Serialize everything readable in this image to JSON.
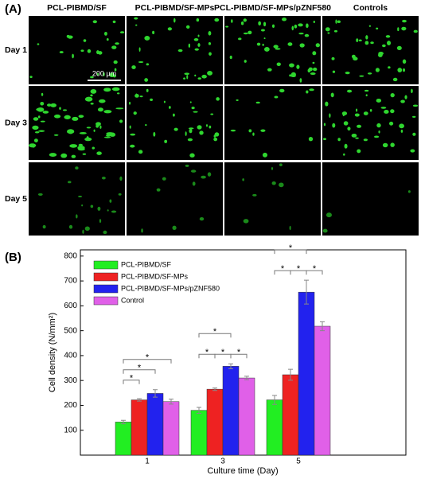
{
  "panel_a": {
    "label": "(A)",
    "columns": [
      "PCL-PIBMD/SF",
      "PCL-PIBMD/SF-MPs",
      "PCL-PIBMD/SF-MPs/pZNF580",
      "Controls"
    ],
    "rows": [
      "Day 1",
      "Day 3",
      "Day 5"
    ],
    "scale_bar": "200 μm"
  },
  "chart_data": {
    "type": "bar",
    "panel_label": "(B)",
    "x_label": "Culture time (Day)",
    "y_label": "Cell density (N/mm²)",
    "categories": [
      "1",
      "3",
      "5"
    ],
    "series": [
      {
        "name": "PCL-PIBMD/SF",
        "color": "#22ee22",
        "values": [
          133,
          180,
          222
        ],
        "errors": [
          7,
          12,
          18
        ]
      },
      {
        "name": "PCL-PIBMD/SF-MPs",
        "color": "#ee2222",
        "values": [
          222,
          265,
          323
        ],
        "errors": [
          5,
          5,
          22
        ]
      },
      {
        "name": "PCL-PIBMD/SF-MPs/pZNF580",
        "color": "#2222ee",
        "values": [
          248,
          357,
          655
        ],
        "errors": [
          15,
          10,
          48
        ]
      },
      {
        "name": "Control",
        "color": "#e060e8",
        "values": [
          215,
          310,
          518
        ],
        "errors": [
          10,
          7,
          18
        ]
      }
    ],
    "ylim": [
      0,
      825
    ],
    "yticks": [
      100,
      200,
      300,
      400,
      500,
      600,
      700,
      800
    ],
    "legend": "upper left",
    "significance": [
      {
        "category": 0,
        "from": 0,
        "to": 1,
        "label": "*"
      },
      {
        "category": 0,
        "from": 0,
        "to": 2,
        "label": "*"
      },
      {
        "category": 0,
        "from": 0,
        "to": 3,
        "label": "*"
      },
      {
        "category": 1,
        "from": 0,
        "to": 1,
        "label": "*"
      },
      {
        "category": 1,
        "from": 1,
        "to": 2,
        "label": "*"
      },
      {
        "category": 1,
        "from": 0,
        "to": 2,
        "label": "*"
      },
      {
        "category": 1,
        "from": 2,
        "to": 3,
        "label": "*"
      },
      {
        "category": 2,
        "from": 0,
        "to": 1,
        "label": "*"
      },
      {
        "category": 2,
        "from": 1,
        "to": 2,
        "label": "*"
      },
      {
        "category": 2,
        "from": 0,
        "to": 2,
        "label": "*"
      },
      {
        "category": 2,
        "from": 2,
        "to": 3,
        "label": "*"
      }
    ]
  }
}
